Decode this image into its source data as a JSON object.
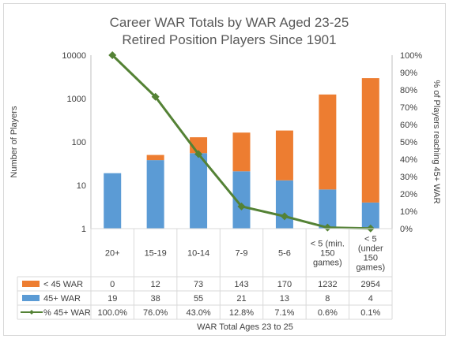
{
  "chart_data": {
    "type": "bar",
    "title": "Career WAR Totals by WAR Aged 23-25",
    "subtitle": "Retired Position Players Since 1901",
    "xlabel": "WAR Total Ages 23 to 25",
    "ylabel": "Number of Players",
    "y2label": "% of Players reaching 45+ WAR",
    "yscale": "log",
    "ylim": [
      1,
      10000
    ],
    "y2lim": [
      0,
      100
    ],
    "y_ticks": [
      "1",
      "10",
      "100",
      "1000",
      "10000"
    ],
    "y2_ticks": [
      "0%",
      "10%",
      "20%",
      "30%",
      "40%",
      "50%",
      "60%",
      "70%",
      "80%",
      "90%",
      "100%"
    ],
    "categories": [
      [
        "20+"
      ],
      [
        "15-19"
      ],
      [
        "10-14"
      ],
      [
        "7-9"
      ],
      [
        "5-6"
      ],
      [
        "< 5 (min.",
        "150",
        "games)"
      ],
      [
        "< 5",
        "(under",
        "150",
        "games)"
      ]
    ],
    "series": [
      {
        "name": "< 45 WAR",
        "kind": "stacked-bar",
        "color": "#ED7D31",
        "values": [
          0,
          12,
          73,
          143,
          170,
          1232,
          2954
        ],
        "labels": [
          "0",
          "12",
          "73",
          "143",
          "170",
          "1232",
          "2954"
        ]
      },
      {
        "name": "45+ WAR",
        "kind": "stacked-bar",
        "color": "#5B9BD5",
        "values": [
          19,
          38,
          55,
          21,
          13,
          8,
          4
        ],
        "labels": [
          "19",
          "38",
          "55",
          "21",
          "13",
          "8",
          "4"
        ]
      },
      {
        "name": "% 45+ WAR",
        "kind": "line",
        "axis": "secondary",
        "color": "#548235",
        "values": [
          100.0,
          76.0,
          43.0,
          12.8,
          7.1,
          0.6,
          0.1
        ],
        "labels": [
          "100.0%",
          "76.0%",
          "43.0%",
          "12.8%",
          "7.1%",
          "0.6%",
          "0.1%"
        ]
      }
    ],
    "grid": false,
    "legend": "data-table"
  }
}
